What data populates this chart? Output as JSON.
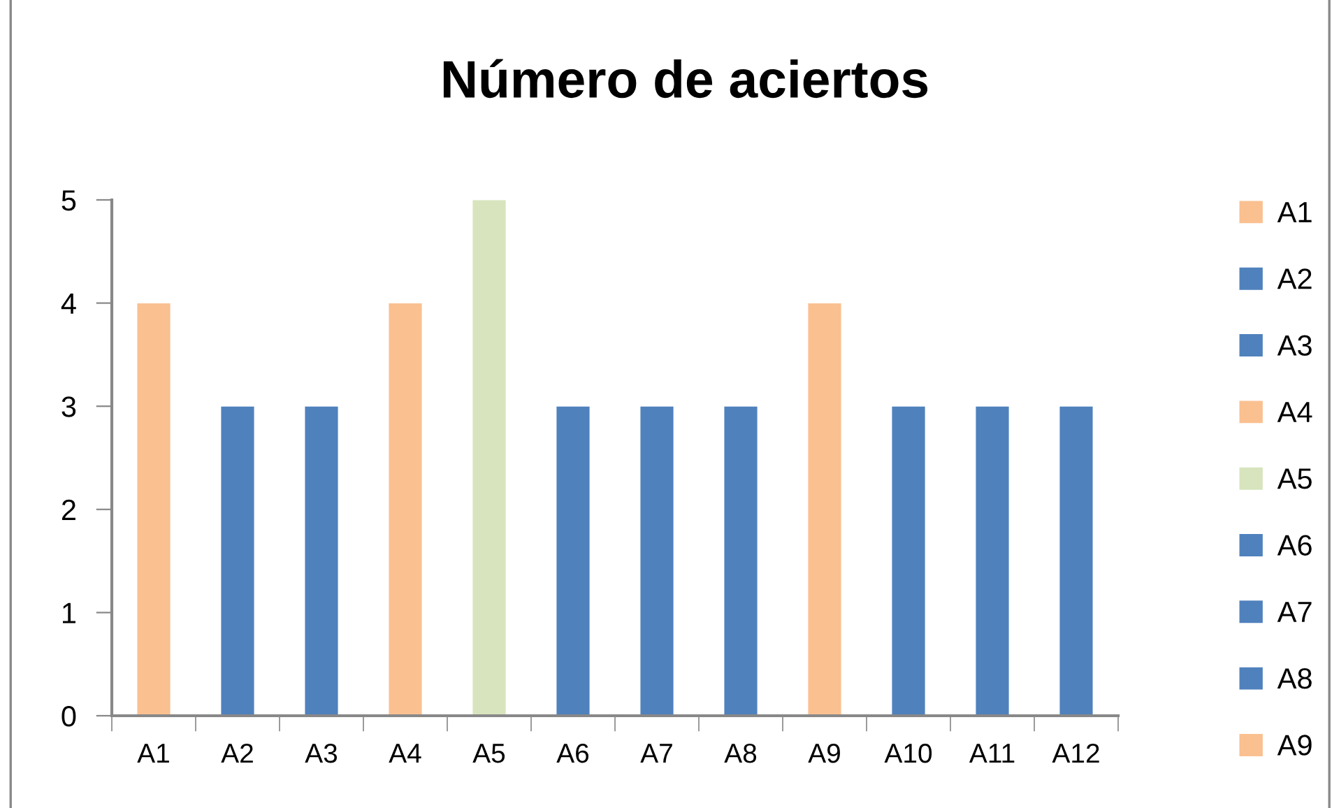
{
  "chart_data": {
    "type": "bar",
    "title": "Número de aciertos",
    "categories": [
      "A1",
      "A2",
      "A3",
      "A4",
      "A5",
      "A6",
      "A7",
      "A8",
      "A9",
      "A10",
      "A11",
      "A12"
    ],
    "series": [
      {
        "name": "A1",
        "color": "#fac090",
        "values": [
          4,
          null,
          null,
          null,
          null,
          null,
          null,
          null,
          null,
          null,
          null,
          null
        ]
      },
      {
        "name": "A2",
        "color": "#4f81bd",
        "values": [
          null,
          3,
          null,
          null,
          null,
          null,
          null,
          null,
          null,
          null,
          null,
          null
        ]
      },
      {
        "name": "A3",
        "color": "#4f81bd",
        "values": [
          null,
          null,
          3,
          null,
          null,
          null,
          null,
          null,
          null,
          null,
          null,
          null
        ]
      },
      {
        "name": "A4",
        "color": "#fac090",
        "values": [
          null,
          null,
          null,
          4,
          null,
          null,
          null,
          null,
          null,
          null,
          null,
          null
        ]
      },
      {
        "name": "A5",
        "color": "#d7e4bd",
        "values": [
          null,
          null,
          null,
          null,
          5,
          null,
          null,
          null,
          null,
          null,
          null,
          null
        ]
      },
      {
        "name": "A6",
        "color": "#4f81bd",
        "values": [
          null,
          null,
          null,
          null,
          null,
          3,
          null,
          null,
          null,
          null,
          null,
          null
        ]
      },
      {
        "name": "A7",
        "color": "#4f81bd",
        "values": [
          null,
          null,
          null,
          null,
          null,
          null,
          3,
          null,
          null,
          null,
          null,
          null
        ]
      },
      {
        "name": "A8",
        "color": "#4f81bd",
        "values": [
          null,
          null,
          null,
          null,
          null,
          null,
          null,
          3,
          null,
          null,
          null,
          null
        ]
      },
      {
        "name": "A9",
        "color": "#fac090",
        "values": [
          null,
          null,
          null,
          null,
          null,
          null,
          null,
          null,
          4,
          null,
          null,
          null
        ]
      },
      {
        "color": "#4f81bd",
        "values": [
          null,
          null,
          null,
          null,
          null,
          null,
          null,
          null,
          null,
          3,
          null,
          null
        ]
      },
      {
        "color": "#4f81bd",
        "values": [
          null,
          null,
          null,
          null,
          null,
          null,
          null,
          null,
          null,
          null,
          3,
          null
        ]
      },
      {
        "color": "#4f81bd",
        "values": [
          null,
          null,
          null,
          null,
          null,
          null,
          null,
          null,
          null,
          null,
          null,
          3
        ]
      }
    ],
    "ylim": [
      0,
      5
    ],
    "yticks": [
      0,
      1,
      2,
      3,
      4,
      5
    ],
    "grid": false,
    "legend": "right"
  }
}
